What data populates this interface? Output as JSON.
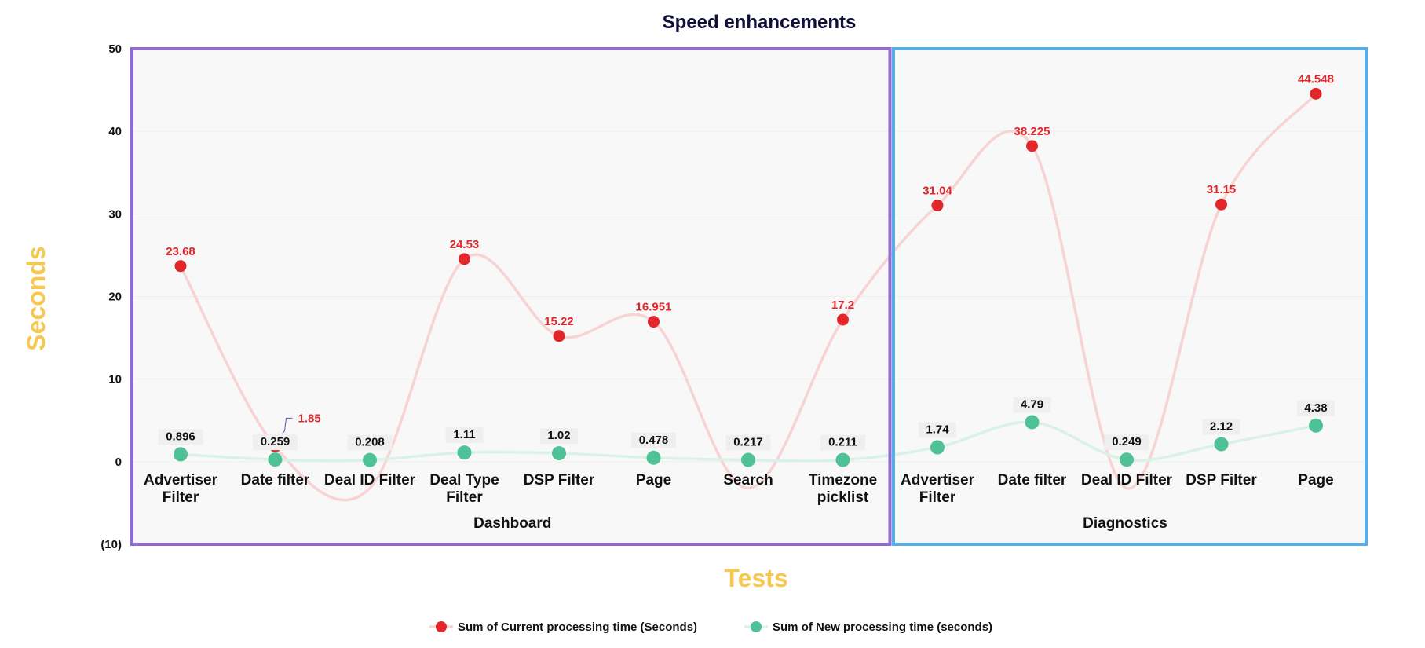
{
  "chart_data": {
    "type": "line",
    "title": "Speed enhancements",
    "xlabel": "Tests",
    "ylabel": "Seconds",
    "ylim": [
      -10,
      50
    ],
    "yticks": [
      {
        "value": 50,
        "label": "50"
      },
      {
        "value": 40,
        "label": "40"
      },
      {
        "value": 30,
        "label": "30"
      },
      {
        "value": 20,
        "label": "20"
      },
      {
        "value": 10,
        "label": "10"
      },
      {
        "value": 0,
        "label": "0"
      },
      {
        "value": -10,
        "label": "(10)"
      }
    ],
    "groups": [
      {
        "name": "Dashboard",
        "start": 0,
        "end": 7,
        "color": "#8f6bd2"
      },
      {
        "name": "Diagnostics",
        "start": 8,
        "end": 12,
        "color": "#56aeea"
      }
    ],
    "categories": [
      [
        "Advertiser",
        "Filter"
      ],
      [
        "Date filter"
      ],
      [
        "Deal ID Filter"
      ],
      [
        "Deal Type",
        "Filter"
      ],
      [
        "DSP Filter"
      ],
      [
        "Page"
      ],
      [
        "Search"
      ],
      [
        "Timezone",
        "picklist"
      ],
      [
        "Advertiser",
        "Filter"
      ],
      [
        "Date filter"
      ],
      [
        "Deal ID Filter"
      ],
      [
        "DSP Filter"
      ],
      [
        "Page"
      ]
    ],
    "series": [
      {
        "name": "Sum of Current processing time (Seconds)",
        "color": "#e3262a",
        "line_color": "#f7d3d3",
        "values": [
          23.68,
          1.85,
          null,
          24.53,
          15.22,
          16.951,
          null,
          17.2,
          31.04,
          38.225,
          null,
          31.15,
          44.548
        ],
        "labels": [
          "23.68",
          "1.85",
          "",
          "24.53",
          "15.22",
          "16.951",
          "",
          "17.2",
          "31.04",
          "38.225",
          "",
          "31.15",
          "44.548"
        ]
      },
      {
        "name": "Sum of New processing time (seconds)",
        "color": "#4fc196",
        "line_color": "#d9f1e8",
        "values": [
          0.896,
          0.259,
          0.208,
          1.11,
          1.02,
          0.478,
          0.217,
          0.211,
          1.74,
          4.79,
          0.249,
          2.12,
          4.38
        ],
        "labels": [
          "0.896",
          "0.259",
          "0.208",
          "1.11",
          "1.02",
          "0.478",
          "0.217",
          "0.211",
          "1.74",
          "4.79",
          "0.249",
          "2.12",
          "4.38"
        ]
      }
    ],
    "legend_position": "bottom-center"
  }
}
